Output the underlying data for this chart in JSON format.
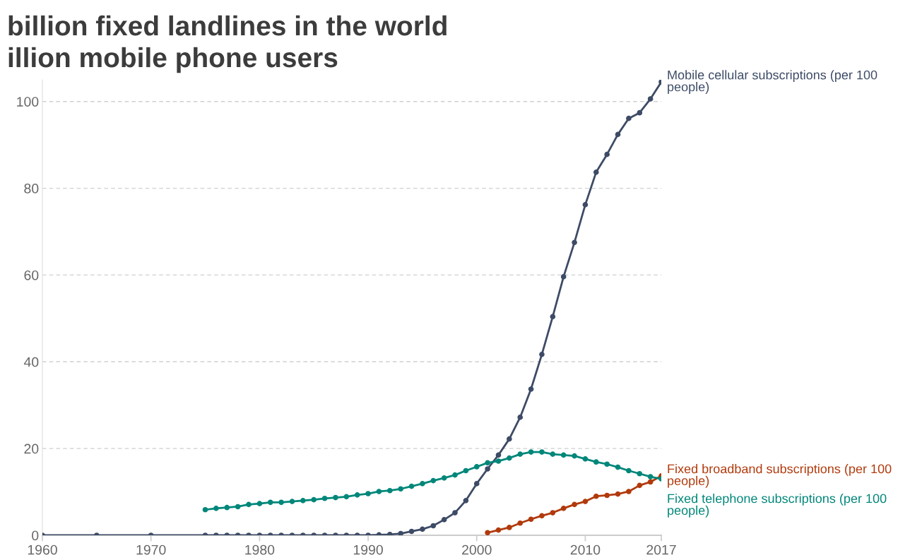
{
  "chart_data": {
    "type": "line",
    "title": "billion fixed landlines in the world",
    "subtitle": "illion mobile phone users",
    "xlim": [
      1960,
      2017
    ],
    "xticks": [
      1960,
      1970,
      1980,
      1990,
      2000,
      2010,
      2017
    ],
    "ylim": [
      0,
      105
    ],
    "yticks": [
      0,
      20,
      40,
      60,
      80,
      100
    ],
    "grid": "y",
    "legend": false,
    "marker": "circle",
    "line_style": "solid",
    "series": [
      {
        "name": "Mobile cellular subscriptions (per 100\npeople)",
        "color": "#3d4b66",
        "x": [
          1960,
          1965,
          1970,
          1975,
          1976,
          1977,
          1978,
          1979,
          1980,
          1981,
          1982,
          1983,
          1984,
          1985,
          1986,
          1987,
          1988,
          1989,
          1990,
          1991,
          1992,
          1993,
          1994,
          1995,
          1996,
          1997,
          1998,
          1999,
          2000,
          2001,
          2002,
          2003,
          2004,
          2005,
          2006,
          2007,
          2008,
          2009,
          2010,
          2011,
          2012,
          2013,
          2014,
          2015,
          2016,
          2017
        ],
        "values": [
          0,
          0,
          0,
          0,
          0,
          0,
          0,
          0,
          0,
          0,
          0,
          0,
          0,
          0,
          0,
          0,
          0,
          0,
          0,
          0.1,
          0.2,
          0.4,
          0.9,
          1.4,
          2.2,
          3.6,
          5.2,
          8.0,
          11.9,
          15.3,
          18.5,
          22.2,
          27.2,
          33.7,
          41.7,
          50.4,
          59.6,
          67.5,
          76.2,
          83.7,
          87.8,
          92.4,
          96.1,
          97.4,
          100.6,
          104.5
        ]
      },
      {
        "name": "Fixed broadband subscriptions (per 100\npeople)",
        "color": "#b13a0c",
        "x": [
          2001,
          2002,
          2003,
          2004,
          2005,
          2006,
          2007,
          2008,
          2009,
          2010,
          2011,
          2012,
          2013,
          2014,
          2015,
          2016,
          2017
        ],
        "values": [
          0.6,
          1.2,
          1.8,
          2.8,
          3.7,
          4.5,
          5.2,
          6.2,
          7.1,
          7.8,
          9.0,
          9.2,
          9.5,
          10.1,
          11.5,
          12.3,
          13.7
        ]
      },
      {
        "name": "Fixed telephone subscriptions (per 100\npeople)",
        "color": "#00877a",
        "x": [
          1975,
          1976,
          1977,
          1978,
          1979,
          1980,
          1981,
          1982,
          1983,
          1984,
          1985,
          1986,
          1987,
          1988,
          1989,
          1990,
          1991,
          1992,
          1993,
          1994,
          1995,
          1996,
          1997,
          1998,
          1999,
          2000,
          2001,
          2002,
          2003,
          2004,
          2005,
          2006,
          2007,
          2008,
          2009,
          2010,
          2011,
          2012,
          2013,
          2014,
          2015,
          2016,
          2017
        ],
        "values": [
          5.9,
          6.2,
          6.4,
          6.6,
          7.1,
          7.3,
          7.6,
          7.6,
          7.8,
          8.0,
          8.2,
          8.5,
          8.7,
          8.9,
          9.3,
          9.6,
          10.1,
          10.3,
          10.7,
          11.3,
          11.9,
          12.6,
          13.2,
          13.9,
          14.9,
          15.8,
          16.7,
          17.1,
          17.8,
          18.7,
          19.2,
          19.2,
          18.7,
          18.5,
          18.3,
          17.6,
          16.9,
          16.4,
          15.7,
          14.9,
          14.2,
          13.5,
          13.0
        ]
      }
    ]
  }
}
